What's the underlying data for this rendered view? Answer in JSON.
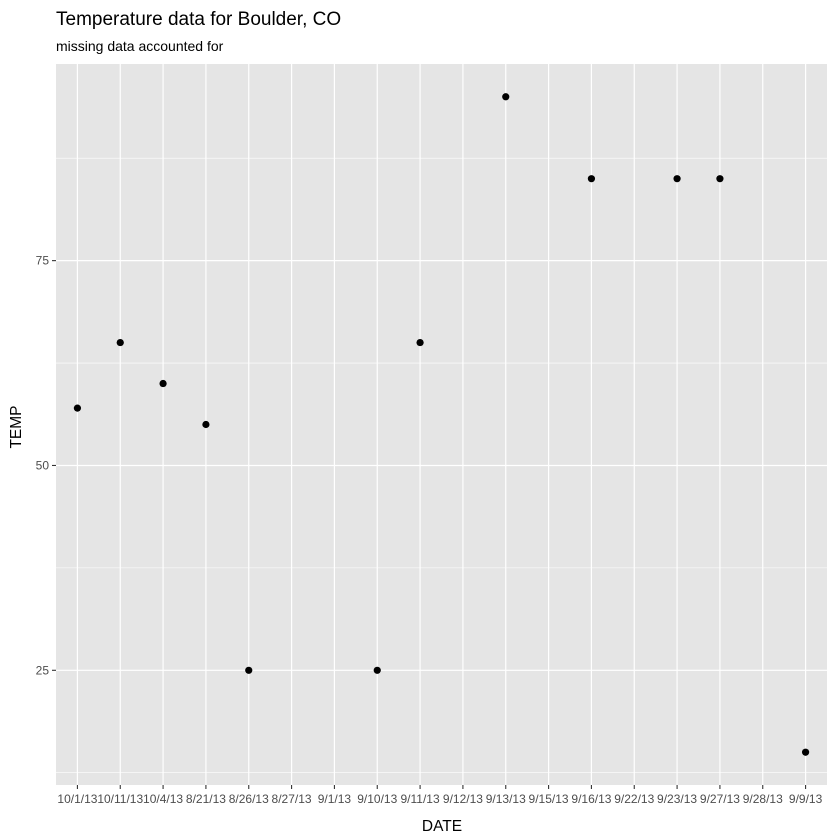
{
  "chart_data": {
    "type": "scatter",
    "title": "Temperature data for Boulder, CO",
    "subtitle": "missing data accounted for",
    "xlabel": "DATE",
    "ylabel": "TEMP",
    "categories": [
      "10/1/13",
      "10/11/13",
      "10/4/13",
      "8/21/13",
      "8/26/13",
      "8/27/13",
      "9/1/13",
      "9/10/13",
      "9/11/13",
      "9/12/13",
      "9/13/13",
      "9/15/13",
      "9/16/13",
      "9/22/13",
      "9/23/13",
      "9/27/13",
      "9/28/13",
      "9/9/13"
    ],
    "points": [
      {
        "x": "10/1/13",
        "y": 57
      },
      {
        "x": "10/11/13",
        "y": 65
      },
      {
        "x": "10/4/13",
        "y": 60
      },
      {
        "x": "8/21/13",
        "y": 55
      },
      {
        "x": "8/26/13",
        "y": 25
      },
      {
        "x": "9/10/13",
        "y": 25
      },
      {
        "x": "9/11/13",
        "y": 65
      },
      {
        "x": "9/13/13",
        "y": 95
      },
      {
        "x": "9/16/13",
        "y": 85
      },
      {
        "x": "9/23/13",
        "y": 85
      },
      {
        "x": "9/27/13",
        "y": 85
      },
      {
        "x": "9/9/13",
        "y": 15
      }
    ],
    "y_ticks": [
      25,
      50,
      75
    ],
    "ylim": [
      11,
      99
    ],
    "grid": true,
    "colors": {
      "panel": "#e5e5e5",
      "grid": "#ffffff",
      "point": "#000000",
      "tick_text": "#4d4d4d",
      "tick_mark": "#333333"
    }
  }
}
